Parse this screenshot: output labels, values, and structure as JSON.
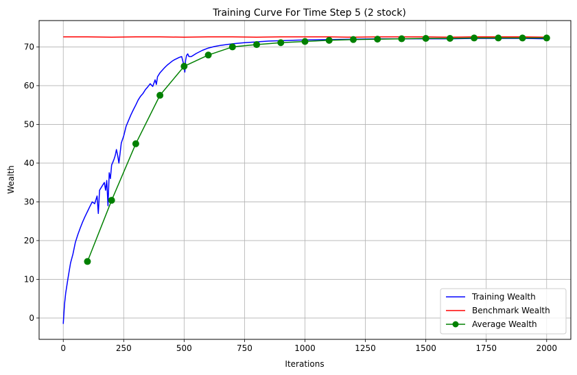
{
  "chart_data": {
    "type": "line",
    "title": "Training Curve For Time Step 5 (2 stock)",
    "xlabel": "Iterations",
    "ylabel": "Wealth",
    "xlim": [
      -100,
      2100
    ],
    "ylim": [
      -5.5,
      76.8
    ],
    "xticks": [
      0,
      250,
      500,
      750,
      1000,
      1250,
      1500,
      1750,
      2000
    ],
    "yticks": [
      0,
      10,
      20,
      30,
      40,
      50,
      60,
      70
    ],
    "grid": true,
    "legend_position": "bottom-right",
    "series": [
      {
        "name": "Training Wealth",
        "color": "#0000ff",
        "marker": "none",
        "x": [
          0,
          5,
          10,
          20,
          30,
          40,
          50,
          60,
          70,
          80,
          90,
          100,
          110,
          120,
          130,
          140,
          145,
          150,
          160,
          170,
          175,
          180,
          185,
          190,
          195,
          200,
          205,
          210,
          215,
          220,
          225,
          230,
          235,
          240,
          250,
          260,
          270,
          280,
          290,
          300,
          310,
          320,
          330,
          340,
          350,
          360,
          370,
          380,
          385,
          390,
          400,
          410,
          420,
          430,
          440,
          450,
          460,
          470,
          480,
          490,
          500,
          503,
          506,
          510,
          515,
          520,
          530,
          550,
          575,
          600,
          625,
          650,
          700,
          750,
          800,
          850,
          900,
          950,
          1000,
          1100,
          1200,
          1300,
          1400,
          1500,
          1600,
          1700,
          1800,
          1900,
          2000
        ],
        "y": [
          -1.5,
          3.5,
          6.5,
          10.5,
          14.2,
          16.5,
          19.5,
          21.5,
          23.2,
          24.8,
          26.2,
          27.5,
          28.8,
          30.0,
          29.5,
          31.5,
          27.0,
          33.0,
          34.0,
          35.0,
          33.0,
          35.5,
          29.0,
          37.5,
          36.0,
          39.5,
          40.2,
          41.0,
          42.0,
          43.5,
          42.0,
          40.0,
          42.5,
          45.2,
          47.0,
          49.5,
          51.0,
          52.5,
          53.8,
          55.0,
          56.3,
          57.3,
          58.0,
          59.0,
          59.7,
          60.5,
          59.8,
          61.5,
          60.3,
          62.3,
          63.3,
          64.0,
          64.7,
          65.3,
          65.8,
          66.3,
          66.7,
          67.0,
          67.3,
          67.5,
          65.0,
          63.5,
          66.5,
          67.8,
          68.2,
          67.5,
          67.5,
          68.3,
          69.1,
          69.7,
          70.1,
          70.4,
          70.8,
          71.1,
          71.3,
          71.5,
          71.6,
          71.7,
          71.8,
          71.9,
          72.0,
          72.1,
          72.1,
          72.1,
          72.1,
          72.2,
          72.2,
          72.2,
          72.1
        ]
      },
      {
        "name": "Benchmark Wealth",
        "color": "#ff0000",
        "marker": "none",
        "x": [
          0,
          100,
          200,
          300,
          400,
          500,
          600,
          700,
          800,
          900,
          1000,
          1100,
          1200,
          1300,
          1400,
          1500,
          1600,
          1700,
          1800,
          1900,
          2000
        ],
        "y": [
          72.6,
          72.6,
          72.5,
          72.6,
          72.6,
          72.5,
          72.6,
          72.6,
          72.5,
          72.6,
          72.6,
          72.6,
          72.5,
          72.6,
          72.6,
          72.6,
          72.5,
          72.6,
          72.6,
          72.6,
          72.5
        ]
      },
      {
        "name": "Average Wealth",
        "color": "#008000",
        "marker": "circle",
        "x": [
          100,
          200,
          300,
          400,
          500,
          600,
          700,
          800,
          900,
          1000,
          1100,
          1200,
          1300,
          1400,
          1500,
          1600,
          1700,
          1800,
          1900,
          2000
        ],
        "y": [
          14.6,
          30.4,
          45.0,
          57.5,
          65.0,
          67.9,
          70.0,
          70.6,
          71.1,
          71.4,
          71.7,
          71.9,
          72.0,
          72.1,
          72.2,
          72.2,
          72.3,
          72.3,
          72.3,
          72.3
        ]
      }
    ]
  }
}
